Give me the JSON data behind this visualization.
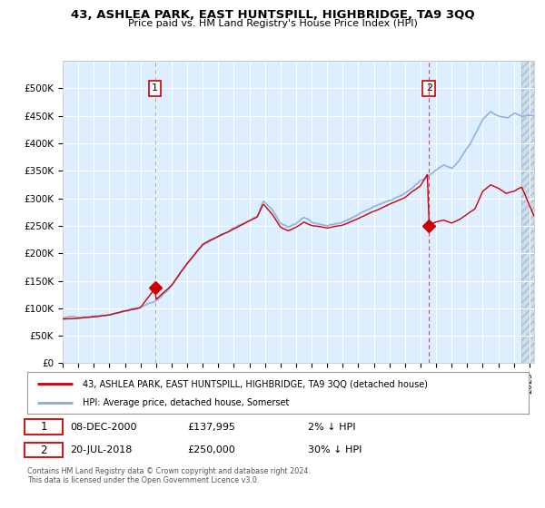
{
  "title": "43, ASHLEA PARK, EAST HUNTSPILL, HIGHBRIDGE, TA9 3QQ",
  "subtitle": "Price paid vs. HM Land Registry's House Price Index (HPI)",
  "legend_label_red": "43, ASHLEA PARK, EAST HUNTSPILL, HIGHBRIDGE, TA9 3QQ (detached house)",
  "legend_label_blue": "HPI: Average price, detached house, Somerset",
  "annotation1_date": "08-DEC-2000",
  "annotation1_price": "£137,995",
  "annotation1_hpi": "2% ↓ HPI",
  "annotation2_date": "20-JUL-2018",
  "annotation2_price": "£250,000",
  "annotation2_hpi": "30% ↓ HPI",
  "footer1": "Contains HM Land Registry data © Crown copyright and database right 2024.",
  "footer2": "This data is licensed under the Open Government Licence v3.0.",
  "red_color": "#cc0000",
  "blue_color": "#88aadd",
  "vline1_color": "#aaaaaa",
  "vline2_color": "#cc0000",
  "background_color": "#ddeeff",
  "plot_bg_color": "#ffffff",
  "grid_color": "#ffffff",
  "ylim": [
    0,
    550000
  ],
  "yticks": [
    0,
    50000,
    100000,
    150000,
    200000,
    250000,
    300000,
    350000,
    400000,
    450000,
    500000
  ],
  "ytick_labels": [
    "£0",
    "£50K",
    "£100K",
    "£150K",
    "£200K",
    "£250K",
    "£300K",
    "£350K",
    "£400K",
    "£450K",
    "£500K"
  ],
  "xmin": 1995.0,
  "xmax": 2025.3,
  "sale1_x": 2000.93,
  "sale1_y": 137995,
  "sale2_x": 2018.54,
  "sale2_y": 250000,
  "vline1_x": 2000.93,
  "vline2_x": 2018.54,
  "hatch_start": 2024.5
}
